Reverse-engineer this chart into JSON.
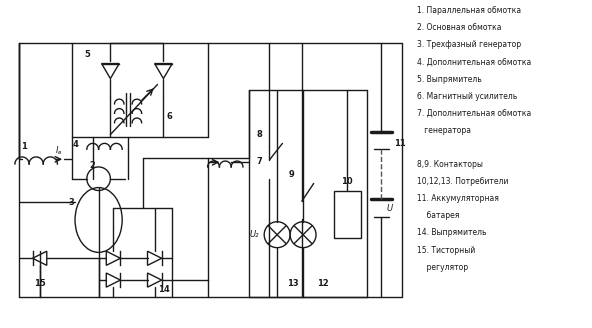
{
  "bg_color": "#ffffff",
  "line_color": "#1a1a1a",
  "text_color": "#1a1a1a",
  "legend_lines": [
    "1. Параллельная обмотка",
    "2. Основная обмотка",
    "3. Трехфазный генератор",
    "4. Дополнительная обмотка",
    "5. Выпрямитель",
    "6. Магнитный усилитель",
    "7. Дополнительная обмотка",
    "   генератора",
    "",
    "8,9. Контакторы",
    "10,12,13. Потребители",
    "11. Аккумуляторная",
    "    батарея",
    "14. Выпрямитель",
    "15. Тисторный",
    "    регулятор"
  ],
  "figsize": [
    5.92,
    3.28
  ],
  "dpi": 100
}
